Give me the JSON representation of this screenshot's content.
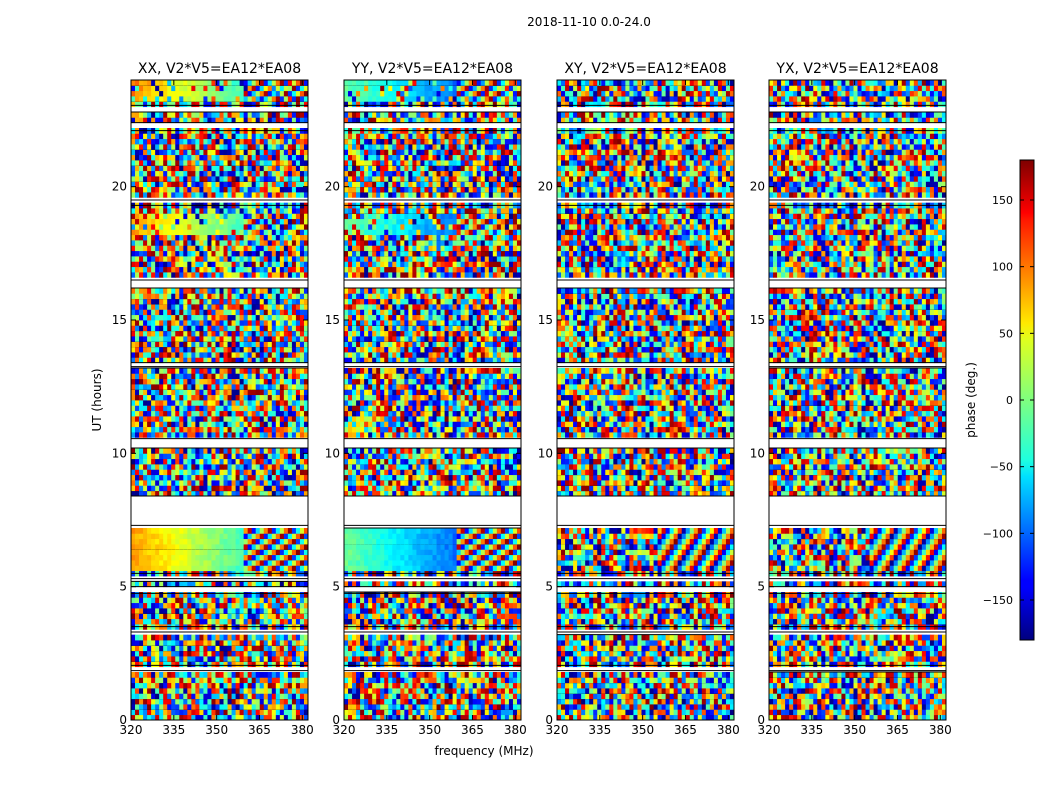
{
  "figure": {
    "suptitle": "2018-11-10 0.0-24.0"
  },
  "chart_data": {
    "type": "heatmap",
    "xlabel": "frequency (MHz)",
    "ylabel": "UT (hours)",
    "xlim": [
      320,
      382
    ],
    "ylim": [
      0,
      24
    ],
    "xticks": [
      320,
      335,
      350,
      365,
      380
    ],
    "yticks": [
      0,
      5,
      10,
      15,
      20
    ],
    "colormap": "jet",
    "colorbar": {
      "label": "phase (deg.)",
      "range": [
        -180,
        180
      ],
      "ticks": [
        150,
        100,
        50,
        0,
        -50,
        -100,
        -150
      ],
      "tick_labels": [
        "150",
        "100",
        "50",
        "0",
        "−50",
        "−100",
        "−150"
      ]
    },
    "panels": [
      {
        "title": "XX, V2*V5=EA12*EA08"
      },
      {
        "title": "YY, V2*V5=EA12*EA08"
      },
      {
        "title": "XY, V2*V5=EA12*EA08"
      },
      {
        "title": "YX, V2*V5=EA12*EA08"
      }
    ],
    "data_gaps_hours": [
      [
        1.85,
        2.05
      ],
      [
        3.3,
        3.5
      ],
      [
        4.75,
        5.0
      ],
      [
        5.3,
        5.5
      ],
      [
        7.3,
        8.4
      ],
      [
        10.2,
        10.55
      ],
      [
        13.25,
        13.4
      ],
      [
        16.2,
        16.5
      ],
      [
        19.3,
        19.5
      ],
      [
        22.1,
        22.4
      ],
      [
        22.8,
        23.05
      ]
    ]
  }
}
